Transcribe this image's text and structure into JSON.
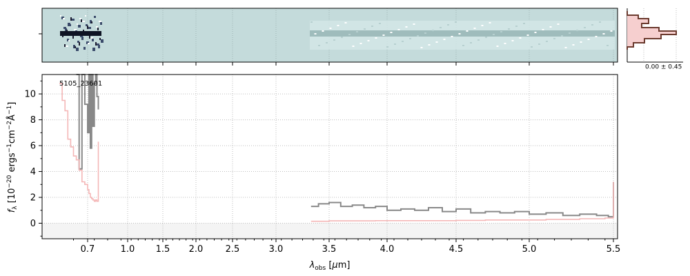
{
  "chart_data": [
    {
      "type": "image",
      "panel": "2d-spectrum",
      "background_color": "#c4dbdb"
    },
    {
      "type": "line",
      "panel": "1d-spectrum",
      "object_label": "5105_23601",
      "xlabel": "λobs [μm]",
      "ylabel": "fλ [10⁻²⁰ ergs⁻¹cm⁻²Å⁻¹]",
      "x_scale": "nonlinear (wavelength-stretched)",
      "xlim": [
        0.6,
        5.52
      ],
      "ylim": [
        -1.2,
        11.5
      ],
      "x_ticks": [
        0.7,
        1.0,
        1.5,
        2.0,
        2.5,
        3.0,
        3.5,
        4.0,
        4.5,
        5.0,
        5.5
      ],
      "x_tick_labels": [
        "0.7",
        "1.0",
        "1.5",
        "2.0",
        "2.5",
        "3.0",
        "3.5",
        "4.0",
        "4.5",
        "5.0",
        "5.5"
      ],
      "y_ticks": [
        0,
        2,
        4,
        6,
        8,
        10
      ],
      "y_tick_labels": [
        "0",
        "2",
        "4",
        "6",
        "8",
        "10"
      ],
      "grid": true,
      "series": [
        {
          "color": "#888888",
          "style": "steps",
          "segments": [
            {
              "x": [
                0.66,
                0.67,
                0.68,
                0.69,
                0.7,
                0.71,
                0.72,
                0.73,
                0.74,
                0.75,
                0.76,
                0.77,
                0.78
              ],
              "y": [
                11.5,
                4.2,
                11.5,
                9.2,
                7.0,
                11.5,
                5.8,
                11.5,
                7.5,
                10.8,
                11.5,
                9.8,
                8.8
              ]
            },
            {
              "x": [
                3.33,
                3.4,
                3.5,
                3.6,
                3.7,
                3.8,
                3.9,
                4.0,
                4.1,
                4.2,
                4.3,
                4.4,
                4.5,
                4.6,
                4.7,
                4.8,
                4.9,
                5.0,
                5.1,
                5.2,
                5.3,
                5.4,
                5.47,
                5.5
              ],
              "y": [
                1.3,
                1.5,
                1.6,
                1.3,
                1.4,
                1.2,
                1.3,
                1.0,
                1.1,
                1.0,
                1.2,
                0.9,
                1.1,
                0.8,
                0.9,
                0.8,
                0.9,
                0.7,
                0.8,
                0.6,
                0.7,
                0.6,
                0.5,
                3.2
              ]
            }
          ]
        },
        {
          "color": "#f4b6b6",
          "style": "steps",
          "segments": [
            {
              "x": [
                0.6,
                0.61,
                0.62,
                0.63,
                0.64,
                0.65,
                0.66,
                0.67,
                0.68,
                0.69,
                0.7,
                0.71,
                0.72,
                0.73,
                0.74,
                0.75,
                0.76,
                0.77,
                0.78
              ],
              "y": [
                10.8,
                9.5,
                8.7,
                6.5,
                5.9,
                5.2,
                4.9,
                4.1,
                3.2,
                3.0,
                2.6,
                2.3,
                2.0,
                1.9,
                1.8,
                1.7,
                1.8,
                1.7,
                6.3
              ]
            },
            {
              "x": [
                3.33,
                3.5,
                3.7,
                3.9,
                4.1,
                4.3,
                4.5,
                4.7,
                4.9,
                5.1,
                5.3,
                5.45,
                5.5
              ],
              "y": [
                0.15,
                0.18,
                0.18,
                0.2,
                0.2,
                0.2,
                0.22,
                0.25,
                0.25,
                0.3,
                0.35,
                0.4,
                3.2
              ]
            }
          ]
        }
      ]
    },
    {
      "type": "histogram",
      "panel": "profile",
      "label": "0.00 ± 0.45",
      "fill_color": "#f6cfcf",
      "line_color": "#6b3a2e"
    }
  ]
}
